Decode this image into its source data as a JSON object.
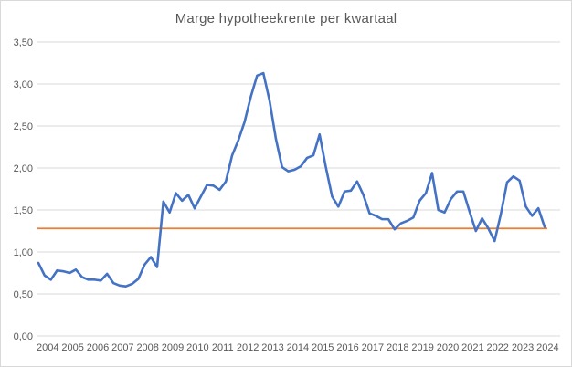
{
  "chart_data": {
    "type": "line",
    "title": "Marge hypotheekrente per kwartaal",
    "legend": "none",
    "grid": "horizontal",
    "x_axis": {
      "tick_labels": [
        "2004",
        "2005",
        "2006",
        "2007",
        "2008",
        "2009",
        "2010",
        "2011",
        "2012",
        "2013",
        "2014",
        "2015",
        "2016",
        "2017",
        "2018",
        "2019",
        "2020",
        "2021",
        "2022",
        "2023",
        "2024"
      ],
      "points_per_label": 4,
      "frequency": "quarterly"
    },
    "y_axis": {
      "tick_labels": [
        "0,00",
        "0,50",
        "1,00",
        "1,50",
        "2,00",
        "2,50",
        "3,00",
        "3,50"
      ],
      "min": 0,
      "max": 3.5,
      "step": 0.5,
      "decimal_separator": ","
    },
    "series": [
      {
        "name": "marge-hypotheekrente",
        "color": "#4472C4",
        "start": "2004 Q1",
        "end": "2024 Q2",
        "values": [
          0.87,
          0.72,
          0.67,
          0.78,
          0.77,
          0.75,
          0.79,
          0.7,
          0.67,
          0.67,
          0.66,
          0.74,
          0.63,
          0.6,
          0.59,
          0.62,
          0.68,
          0.85,
          0.94,
          0.82,
          1.6,
          1.47,
          1.7,
          1.61,
          1.68,
          1.52,
          1.66,
          1.8,
          1.79,
          1.74,
          1.84,
          2.15,
          2.33,
          2.55,
          2.85,
          3.1,
          3.13,
          2.8,
          2.35,
          2.01,
          1.96,
          1.98,
          2.02,
          2.12,
          2.15,
          2.4,
          2.01,
          1.66,
          1.54,
          1.72,
          1.73,
          1.84,
          1.68,
          1.46,
          1.43,
          1.39,
          1.39,
          1.27,
          1.34,
          1.37,
          1.41,
          1.61,
          1.7,
          1.94,
          1.5,
          1.47,
          1.63,
          1.72,
          1.72,
          1.48,
          1.25,
          1.4,
          1.28,
          1.13,
          1.45,
          1.83,
          1.9,
          1.85,
          1.54,
          1.43,
          1.52,
          1.3
        ]
      },
      {
        "name": "reference-line",
        "color": "#ED7D31",
        "constant_value": 1.28
      }
    ]
  },
  "colors": {
    "series_line": "#4472C4",
    "reference_line": "#ED7D31",
    "gridline": "#D9D9D9",
    "axis_text": "#595959",
    "title_text": "#595959",
    "chart_border": "#D9D9D9",
    "background": "#FFFFFF"
  }
}
